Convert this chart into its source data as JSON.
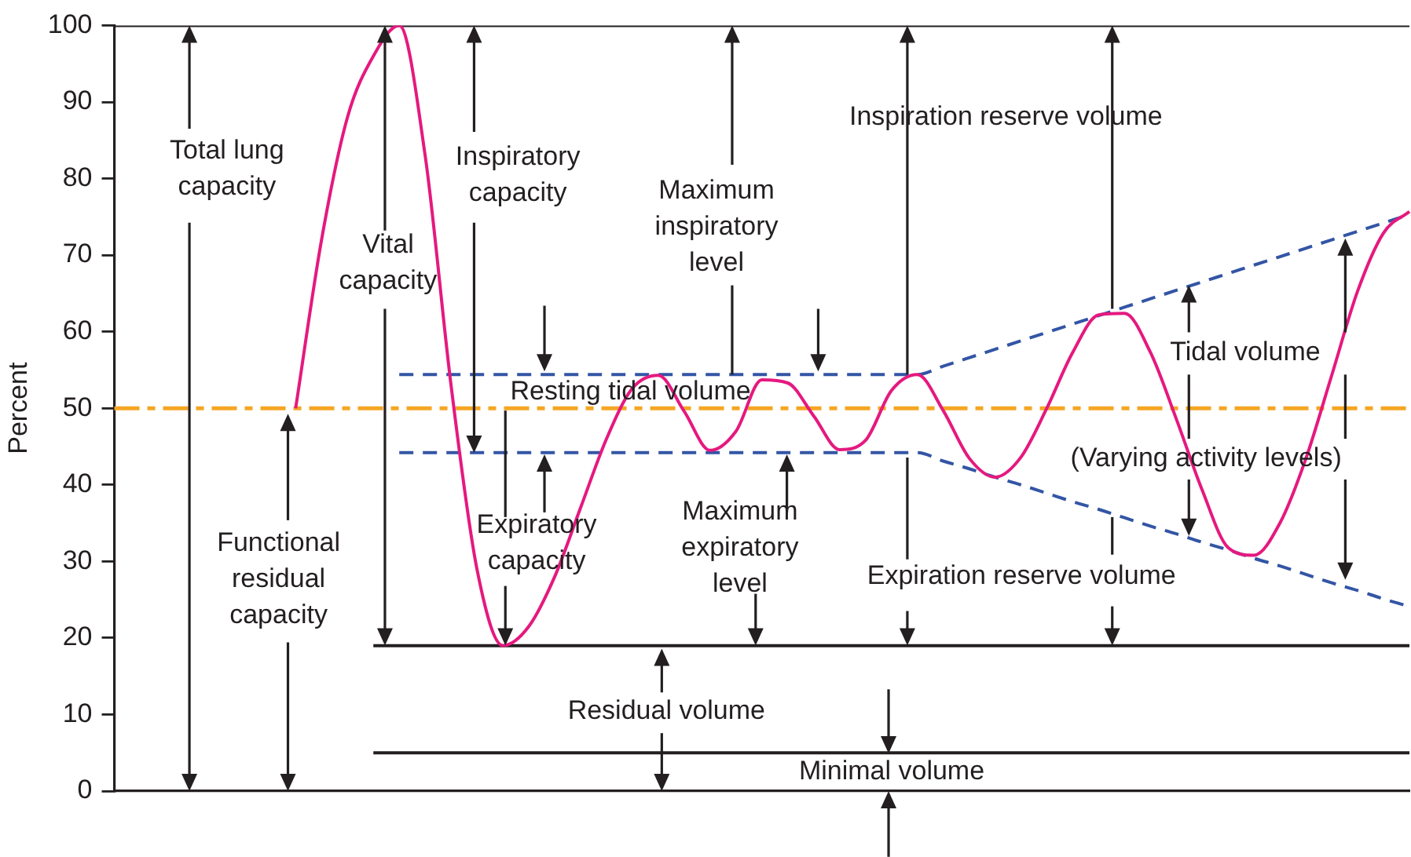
{
  "chart_data": {
    "type": "line",
    "ylabel": "Percent",
    "categories": [
      null,
      null,
      null,
      null,
      null,
      null,
      null,
      null,
      null,
      null,
      null,
      null,
      null,
      null,
      null,
      null,
      null,
      null,
      null,
      null,
      null,
      null,
      null,
      null,
      null,
      null,
      null,
      null,
      null,
      null,
      null,
      null,
      null,
      null,
      null,
      null,
      null,
      null,
      null,
      null,
      null,
      null,
      null,
      null,
      null,
      null,
      null,
      null,
      null,
      null,
      null
    ],
    "ylim": [
      0,
      100
    ],
    "yticks": [
      0,
      10,
      20,
      30,
      40,
      50,
      60,
      70,
      80,
      90,
      100
    ],
    "tick_labels": "y",
    "grid": false,
    "legend": false,
    "marker": "none",
    "series": [
      {
        "color": "#e5197f",
        "values": [
          null,
          null,
          null,
          null,
          null,
          null,
          null,
          50,
          72,
          88,
          96,
          100,
          83,
          53,
          29,
          19,
          21.5,
          28,
          37,
          46,
          52.6,
          54.3,
          49.6,
          44.5,
          47,
          53.7,
          53.3,
          49,
          44.6,
          45.8,
          52.3,
          54.4,
          49.7,
          43.5,
          41,
          43.6,
          50,
          57.3,
          62.2,
          62.4,
          57.3,
          48.6,
          39.3,
          31.8,
          30.8,
          35,
          43.4,
          54.3,
          65.3,
          72.9,
          75.7
        ]
      },
      {
        "color": "#3355a5",
        "line_style": "dashed",
        "values": [
          null,
          null,
          null,
          null,
          null,
          null,
          null,
          null,
          null,
          null,
          null,
          54.4,
          54.4,
          54.4,
          54.4,
          54.4,
          54.4,
          54.4,
          54.4,
          54.4,
          54.4,
          54.4,
          54.4,
          54.4,
          54.4,
          54.4,
          54.4,
          54.4,
          54.4,
          54.4,
          54.4,
          54.4,
          55.5,
          56.6,
          57.7,
          58.8,
          59.9,
          61,
          62.1,
          63.2,
          64.3,
          65.4,
          66.5,
          67.6,
          68.7,
          69.8,
          70.9,
          72,
          73.1,
          74.2,
          75.3
        ]
      },
      {
        "color": "#3355a5",
        "line_style": "dashed",
        "values": [
          null,
          null,
          null,
          null,
          null,
          null,
          null,
          null,
          null,
          null,
          null,
          44.2,
          44.2,
          44.2,
          44.2,
          44.2,
          44.2,
          44.2,
          44.2,
          44.2,
          44.2,
          44.2,
          44.2,
          44.2,
          44.2,
          44.2,
          44.2,
          44.2,
          44.2,
          44.2,
          44.2,
          44.2,
          43.1,
          42.1,
          41,
          40,
          38.9,
          37.8,
          36.8,
          35.7,
          34.6,
          33.6,
          32.5,
          31.5,
          30.4,
          29.4,
          28.3,
          27.2,
          26.2,
          25.1,
          24.1
        ]
      },
      {
        "color": "#231f20",
        "values": [
          100,
          100,
          100,
          100,
          100,
          100,
          100,
          100,
          100,
          100,
          100,
          100,
          100,
          100,
          100,
          100,
          100,
          100,
          100,
          100,
          100,
          100,
          100,
          100,
          100,
          100,
          100,
          100,
          100,
          100,
          100,
          100,
          100,
          100,
          100,
          100,
          100,
          100,
          100,
          100,
          100,
          100,
          100,
          100,
          100,
          100,
          100,
          100,
          100,
          100,
          100
        ]
      },
      {
        "color": "#231f20",
        "values": [
          null,
          null,
          null,
          null,
          null,
          null,
          null,
          null,
          null,
          null,
          19,
          19,
          19,
          19,
          19,
          19,
          19,
          19,
          19,
          19,
          19,
          19,
          19,
          19,
          19,
          19,
          19,
          19,
          19,
          19,
          19,
          19,
          19,
          19,
          19,
          19,
          19,
          19,
          19,
          19,
          19,
          19,
          19,
          19,
          19,
          19,
          19,
          19,
          19,
          19,
          19
        ]
      },
      {
        "color": "#231f20",
        "values": [
          null,
          null,
          null,
          null,
          null,
          null,
          null,
          null,
          null,
          null,
          5,
          5,
          5,
          5,
          5,
          5,
          5,
          5,
          5,
          5,
          5,
          5,
          5,
          5,
          5,
          5,
          5,
          5,
          5,
          5,
          5,
          5,
          5,
          5,
          5,
          5,
          5,
          5,
          5,
          5,
          5,
          5,
          5,
          5,
          5,
          5,
          5,
          5,
          5,
          5,
          5
        ]
      }
    ],
    "ref_lines": [
      {
        "axis": "y",
        "value": 50,
        "color": "#f5a623",
        "line_style": "dashed"
      }
    ],
    "annotations": [
      "Total lung\ncapacity",
      "Functional\nresidual\ncapacity",
      "Vital\ncapacity",
      "Inspiratory\ncapacity",
      "Maximum\ninspiratory\nlevel",
      "Inspiration reserve volume",
      "Resting tidal volume",
      "Expiratory\ncapacity",
      "Maximum\nexpiratory\nlevel",
      "Expiration reserve volume",
      "Tidal volume",
      "(Varying activity levels)",
      "Residual volume",
      "Minimal volume"
    ]
  }
}
